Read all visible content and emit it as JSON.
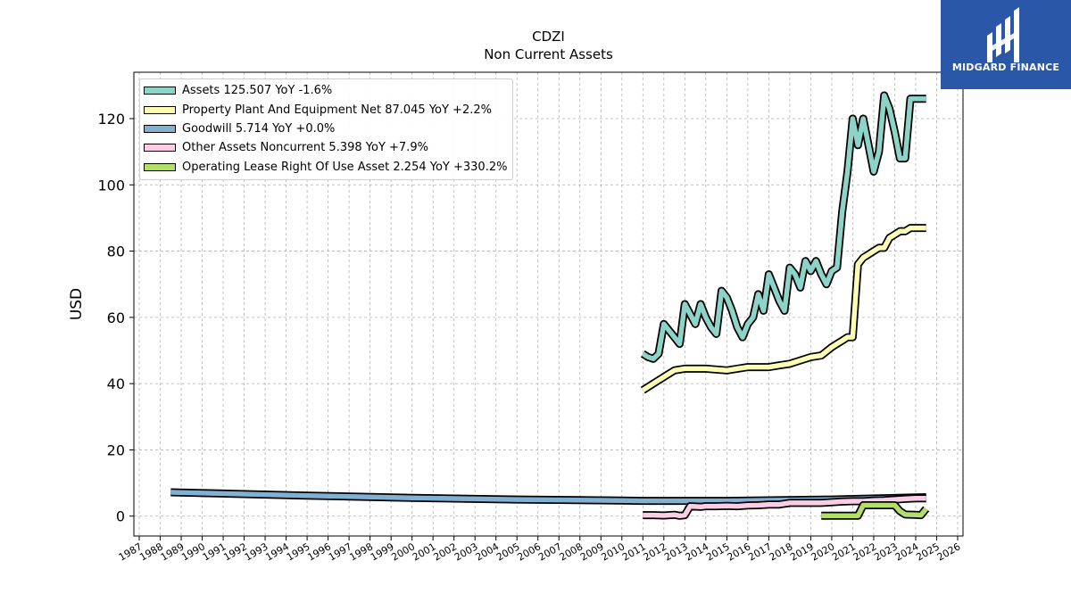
{
  "header": {
    "ticker": "CDZI",
    "subtitle": "Non Current  Assets"
  },
  "logo": {
    "text": "MIDGARD FINANCE",
    "background": "#2a57a8"
  },
  "chart_data": {
    "type": "line",
    "title": "CDZI",
    "subtitle": "Non Current  Assets",
    "xlabel": "",
    "ylabel": "USD",
    "ylim": [
      -6,
      134
    ],
    "yticks": [
      0,
      20,
      40,
      60,
      80,
      100,
      120
    ],
    "xlim": [
      1987.0,
      2026.0
    ],
    "xticks": [
      "1987",
      "1988",
      "1989",
      "1990",
      "1991",
      "1992",
      "1993",
      "1994",
      "1995",
      "1996",
      "1997",
      "1998",
      "1999",
      "2000",
      "2001",
      "2002",
      "2003",
      "2004",
      "2005",
      "2006",
      "2007",
      "2008",
      "2009",
      "2010",
      "2011",
      "2012",
      "2013",
      "2014",
      "2015",
      "2016",
      "2017",
      "2018",
      "2019",
      "2020",
      "2021",
      "2022",
      "2023",
      "2024",
      "2025",
      "2026"
    ],
    "grid": true,
    "legend_position": "top-left",
    "series": [
      {
        "name": "Assets  125.507 YoY -1.6%",
        "color": "#8dd3c7",
        "x": [
          2011.0,
          2011.25,
          2011.5,
          2011.75,
          2012.0,
          2012.25,
          2012.5,
          2012.75,
          2013.0,
          2013.25,
          2013.5,
          2013.75,
          2014.0,
          2014.25,
          2014.5,
          2014.75,
          2015.0,
          2015.25,
          2015.5,
          2015.75,
          2016.0,
          2016.25,
          2016.5,
          2016.75,
          2017.0,
          2017.25,
          2017.5,
          2017.75,
          2018.0,
          2018.25,
          2018.5,
          2018.75,
          2019.0,
          2019.25,
          2019.5,
          2019.75,
          2020.0,
          2020.25,
          2020.5,
          2020.75,
          2021.0,
          2021.25,
          2021.5,
          2021.75,
          2022.0,
          2022.25,
          2022.5,
          2022.75,
          2023.0,
          2023.25,
          2023.5,
          2023.75,
          2024.0,
          2024.25,
          2024.5
        ],
        "values": [
          49,
          48,
          47.5,
          49,
          58,
          56,
          54,
          52,
          64,
          61,
          58,
          64,
          60,
          57,
          55,
          68,
          66,
          62,
          57,
          54,
          58,
          60,
          67,
          62,
          73,
          69,
          65,
          62,
          75,
          73,
          69,
          77,
          74,
          77,
          73,
          70,
          74,
          75,
          92,
          104,
          120,
          112,
          120,
          112,
          104,
          110,
          127,
          123,
          116,
          108,
          108,
          126,
          126,
          126,
          126
        ]
      },
      {
        "name": "Property Plant And Equipment Net  87.045 YoY +2.2%",
        "color": "#ffffb3",
        "x": [
          2011.0,
          2011.5,
          2012.0,
          2012.5,
          2013.0,
          2014.0,
          2015.0,
          2015.5,
          2016.0,
          2017.0,
          2017.5,
          2018.0,
          2018.5,
          2019.0,
          2019.5,
          2020.0,
          2020.25,
          2020.5,
          2020.75,
          2021.0,
          2021.25,
          2021.5,
          2021.75,
          2022.0,
          2022.25,
          2022.5,
          2022.75,
          2023.0,
          2023.25,
          2023.5,
          2023.75,
          2024.0,
          2024.25,
          2024.5
        ],
        "values": [
          38,
          40,
          42,
          44,
          44.5,
          44.5,
          44,
          44.5,
          45,
          45,
          45.5,
          46,
          47,
          48,
          48.5,
          51,
          52,
          53,
          54,
          54,
          76,
          78,
          79,
          80,
          81,
          81,
          84,
          85,
          86,
          86,
          87,
          87,
          87,
          87
        ]
      },
      {
        "name": "Goodwill  5.714 YoY +0.0%",
        "color": "#80b1d3",
        "x": [
          1988.5,
          1995.0,
          2000.0,
          2005.0,
          2010.0,
          2011.0,
          2015.0,
          2020.0,
          2024.5
        ],
        "values": [
          7.2,
          6.2,
          5.5,
          5.0,
          4.7,
          4.6,
          4.6,
          5.0,
          5.7
        ]
      },
      {
        "name": "Other Assets Noncurrent  5.398 YoY +7.9%",
        "color": "#fccde5",
        "x": [
          2011.0,
          2011.5,
          2012.0,
          2012.5,
          2012.75,
          2013.0,
          2013.25,
          2013.75,
          2014.0,
          2014.5,
          2015.0,
          2015.5,
          2016.0,
          2016.5,
          2017.0,
          2017.5,
          2018.0,
          2018.5,
          2019.0,
          2019.5,
          2020.0,
          2020.5,
          2021.0,
          2021.5,
          2022.0,
          2022.5,
          2023.0,
          2023.5,
          2024.0,
          2024.5
        ],
        "values": [
          0.3,
          0.3,
          0.2,
          0.4,
          0.1,
          0.3,
          3.0,
          2.8,
          3.0,
          3.0,
          3.1,
          3.0,
          3.2,
          3.3,
          3.5,
          3.5,
          4.0,
          4.0,
          4.0,
          4.0,
          4.2,
          4.4,
          4.5,
          4.5,
          4.7,
          4.8,
          5.0,
          5.2,
          5.4,
          5.4
        ]
      },
      {
        "name": "Operating Lease Right Of Use Asset  2.254 YoY +330.2%",
        "color": "#b3de69",
        "x": [
          2019.5,
          2020.0,
          2020.5,
          2021.0,
          2021.25,
          2021.5,
          2022.0,
          2022.5,
          2023.0,
          2023.25,
          2023.5,
          2024.0,
          2024.25,
          2024.5
        ],
        "values": [
          0.1,
          0.1,
          0.1,
          0.1,
          0.1,
          3.3,
          3.3,
          3.3,
          3.3,
          1.5,
          0.5,
          0.4,
          0.3,
          2.25
        ]
      }
    ]
  }
}
